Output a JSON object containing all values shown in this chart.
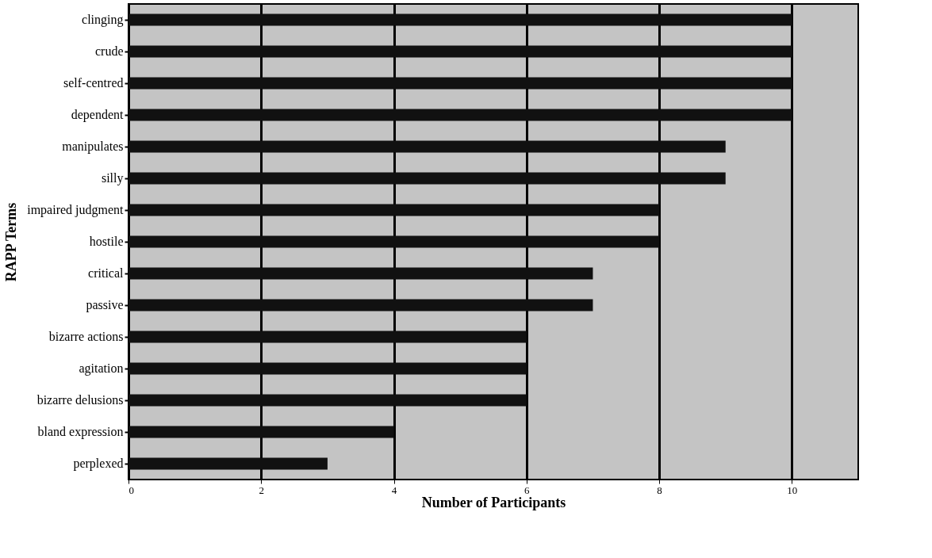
{
  "chart_data": {
    "type": "bar",
    "orientation": "horizontal",
    "xlabel": "Number of Participants",
    "ylabel": "RAPP Terms",
    "categories": [
      "clinging",
      "crude",
      "self-centred",
      "dependent",
      "manipulates",
      "silly",
      "impaired judgment",
      "hostile",
      "critical",
      "passive",
      "bizarre actions",
      "agitation",
      "bizarre delusions",
      "bland expression",
      "perplexed"
    ],
    "values": [
      10,
      10,
      10,
      10,
      9,
      9,
      8,
      8,
      7,
      7,
      6,
      6,
      6,
      4,
      3
    ],
    "color": "#111111",
    "xlim": [
      0,
      11
    ],
    "xticks": [
      0,
      2,
      4,
      6,
      8,
      10
    ],
    "grid": "x"
  }
}
